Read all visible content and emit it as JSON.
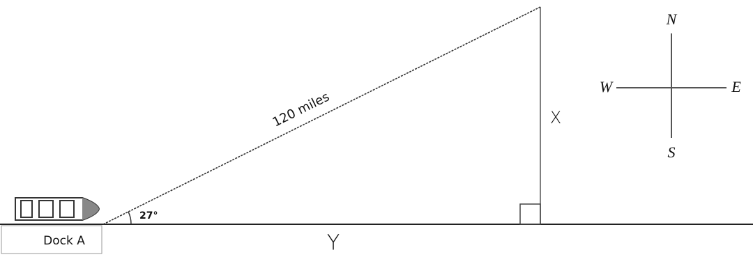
{
  "diagram": {
    "hypotenuse_label": "120 miles",
    "angle_label": "27°",
    "vertical_label": "X",
    "horizontal_label": "Y",
    "dock_label": "Dock A",
    "compass": {
      "north": "N",
      "south": "S",
      "west": "W",
      "east": "E"
    }
  }
}
